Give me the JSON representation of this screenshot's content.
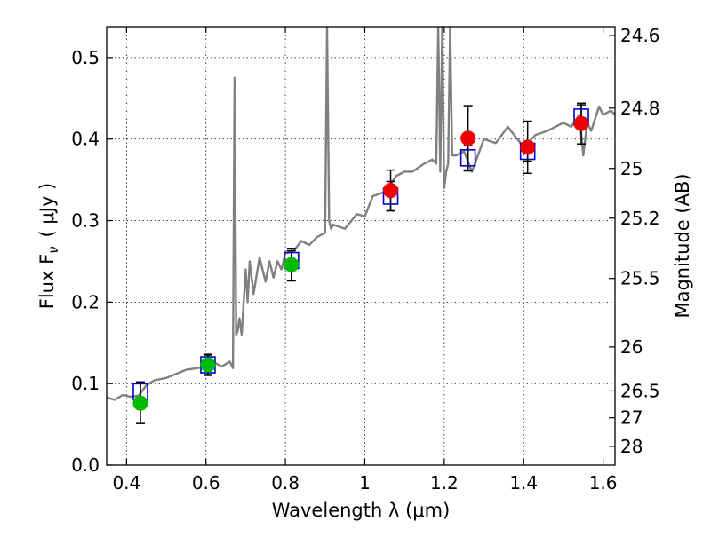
{
  "chart_data": {
    "type": "scatter",
    "title": "",
    "xlabel": "Wavelength  λ (μm)",
    "ylabel": "Flux  F",
    "ylabel_subscript": "ν",
    "ylabel_unit": "( μJy )",
    "ylabel_right": "Magnitude (AB)",
    "xlim": [
      0.35,
      1.63
    ],
    "ylim": [
      0.0,
      0.538
    ],
    "grid": true,
    "x_ticks": [
      0.4,
      0.6,
      0.8,
      1.0,
      1.2,
      1.4,
      1.6
    ],
    "x_tick_labels": [
      "0.4",
      "0.6",
      "0.8",
      "1",
      "1.2",
      "1.4",
      "1.6"
    ],
    "y_ticks": [
      0.0,
      0.1,
      0.2,
      0.3,
      0.4,
      0.5
    ],
    "y_tick_labels": [
      "0.0",
      "0.1",
      "0.2",
      "0.3",
      "0.4",
      "0.5"
    ],
    "right_axis_ticks": [
      {
        "label": "24.6",
        "flux": 0.527
      },
      {
        "label": "24.8",
        "flux": 0.438
      },
      {
        "label": "25",
        "flux": 0.364
      },
      {
        "label": "25.2",
        "flux": 0.303
      },
      {
        "label": "25.5",
        "flux": 0.229
      },
      {
        "label": "26",
        "flux": 0.145
      },
      {
        "label": "26.5",
        "flux": 0.091
      },
      {
        "label": "27",
        "flux": 0.058
      },
      {
        "label": "28",
        "flux": 0.023
      }
    ],
    "series": [
      {
        "type": "line",
        "color": "#808080",
        "x": [
          0.35,
          0.37,
          0.39,
          0.41,
          0.43,
          0.45,
          0.47,
          0.5,
          0.52,
          0.55,
          0.58,
          0.6,
          0.62,
          0.64,
          0.66,
          0.668,
          0.672,
          0.676,
          0.68,
          0.684,
          0.69,
          0.7,
          0.705,
          0.71,
          0.72,
          0.735,
          0.75,
          0.76,
          0.77,
          0.78,
          0.79,
          0.8,
          0.82,
          0.84,
          0.86,
          0.88,
          0.9,
          0.905,
          0.91,
          0.915,
          0.92,
          0.95,
          0.98,
          1.0,
          1.02,
          1.05,
          1.08,
          1.1,
          1.12,
          1.15,
          1.17,
          1.18,
          1.185,
          1.19,
          1.195,
          1.2,
          1.205,
          1.21,
          1.215,
          1.22,
          1.23,
          1.25,
          1.27,
          1.3,
          1.33,
          1.36,
          1.4,
          1.43,
          1.46,
          1.5,
          1.52,
          1.54,
          1.55,
          1.56,
          1.57,
          1.59,
          1.6,
          1.62,
          1.63
        ],
        "y": [
          0.083,
          0.08,
          0.086,
          0.084,
          0.085,
          0.098,
          0.104,
          0.107,
          0.111,
          0.117,
          0.119,
          0.122,
          0.126,
          0.121,
          0.127,
          0.119,
          0.475,
          0.16,
          0.165,
          0.18,
          0.16,
          0.24,
          0.2,
          0.25,
          0.21,
          0.255,
          0.225,
          0.25,
          0.23,
          0.25,
          0.24,
          0.26,
          0.262,
          0.275,
          0.27,
          0.28,
          0.285,
          0.538,
          0.3,
          0.29,
          0.295,
          0.29,
          0.308,
          0.305,
          0.33,
          0.335,
          0.355,
          0.36,
          0.36,
          0.37,
          0.375,
          0.37,
          0.538,
          0.36,
          0.538,
          0.34,
          0.36,
          0.37,
          0.538,
          0.38,
          0.38,
          0.385,
          0.36,
          0.4,
          0.395,
          0.415,
          0.39,
          0.405,
          0.41,
          0.42,
          0.415,
          0.43,
          0.38,
          0.42,
          0.41,
          0.44,
          0.43,
          0.435,
          0.43
        ]
      },
      {
        "type": "scatter",
        "marker": "square",
        "color": "#0000cc",
        "x": [
          0.435,
          0.605,
          0.815,
          1.065,
          1.26,
          1.41,
          1.545
        ],
        "y": [
          0.09,
          0.123,
          0.251,
          0.33,
          0.377,
          0.385,
          0.427
        ],
        "yerr": [
          0.012,
          0.012,
          0.012,
          0.018,
          0.015,
          0.012,
          0.015
        ]
      },
      {
        "type": "scatter",
        "marker": "circle",
        "color": "#00bb00",
        "x": [
          0.435,
          0.605,
          0.815
        ],
        "y": [
          0.076,
          0.123,
          0.246
        ],
        "yerr": [
          0.025,
          0.013,
          0.02
        ]
      },
      {
        "type": "scatter",
        "marker": "circle",
        "color": "#ee0000",
        "x": [
          1.065,
          1.26,
          1.41,
          1.545
        ],
        "y": [
          0.337,
          0.401,
          0.39,
          0.419
        ],
        "yerr": [
          0.025,
          0.04,
          0.032,
          0.025
        ]
      }
    ]
  }
}
